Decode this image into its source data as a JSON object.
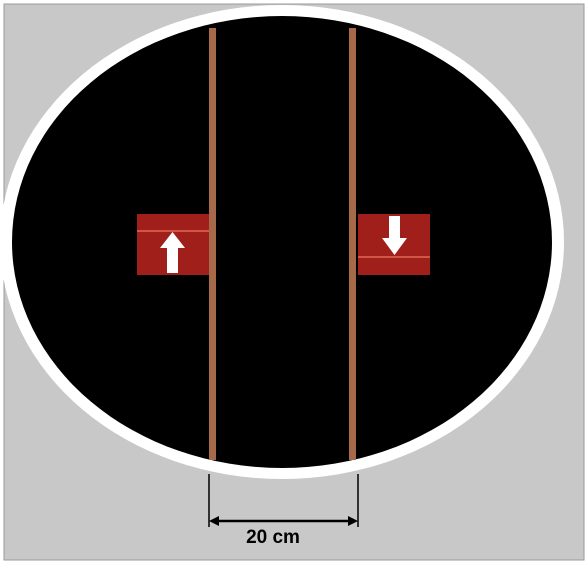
{
  "colors": {
    "background": "#c8c8c8",
    "disk_fill": "#000000",
    "disk_rim": "#ffffff",
    "rods": "#a66a4a",
    "magnet": "#a11f1a",
    "magnet_line": "#e06a55",
    "arrow": "#ffffff",
    "scale": "#000000"
  },
  "icons": {
    "left_magnet_arrow": "arrow-up-icon",
    "right_magnet_arrow": "arrow-down-icon"
  },
  "scale": {
    "label": "20 cm"
  }
}
